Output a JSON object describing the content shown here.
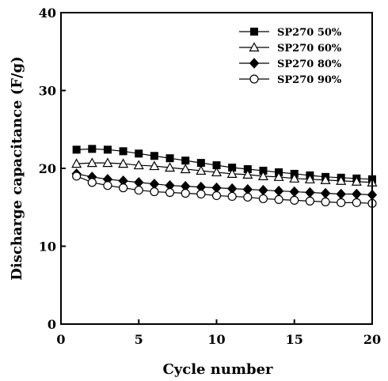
{
  "chart_data": {
    "type": "line",
    "xlabel": "Cycle number",
    "ylabel": "Discharge capacitance (F/g)",
    "xlim": [
      0,
      20
    ],
    "ylim": [
      0,
      40
    ],
    "xticks": [
      0,
      5,
      10,
      15,
      20
    ],
    "yticks": [
      0,
      10,
      20,
      30,
      40
    ],
    "grid": false,
    "legend_position": "top-right",
    "x": [
      1,
      2,
      3,
      4,
      5,
      6,
      7,
      8,
      9,
      10,
      11,
      12,
      13,
      14,
      15,
      16,
      17,
      18,
      19,
      20
    ],
    "series": [
      {
        "name": "SP270 50%",
        "marker": "filled-square",
        "values": [
          22.4,
          22.5,
          22.4,
          22.2,
          21.9,
          21.6,
          21.3,
          21.0,
          20.7,
          20.4,
          20.1,
          19.9,
          19.7,
          19.5,
          19.3,
          19.1,
          18.9,
          18.8,
          18.7,
          18.6
        ]
      },
      {
        "name": "SP270 60%",
        "marker": "open-triangle",
        "values": [
          20.6,
          20.7,
          20.7,
          20.6,
          20.4,
          20.3,
          20.1,
          19.9,
          19.7,
          19.5,
          19.3,
          19.2,
          19.0,
          18.9,
          18.7,
          18.6,
          18.5,
          18.4,
          18.3,
          18.2
        ]
      },
      {
        "name": "SP270 80%",
        "marker": "filled-diamond",
        "values": [
          19.3,
          18.9,
          18.6,
          18.4,
          18.2,
          18.0,
          17.8,
          17.7,
          17.6,
          17.5,
          17.4,
          17.3,
          17.2,
          17.1,
          17.0,
          16.9,
          16.8,
          16.7,
          16.7,
          16.6
        ]
      },
      {
        "name": "SP270 90%",
        "marker": "open-circle",
        "values": [
          19.0,
          18.2,
          17.8,
          17.5,
          17.2,
          17.0,
          16.9,
          16.8,
          16.7,
          16.5,
          16.4,
          16.3,
          16.1,
          16.0,
          15.9,
          15.8,
          15.7,
          15.6,
          15.6,
          15.5
        ]
      }
    ]
  }
}
